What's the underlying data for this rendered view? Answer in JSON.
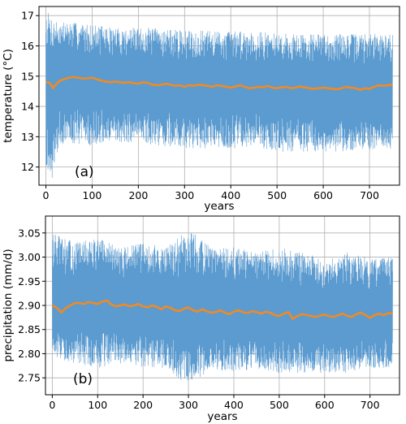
{
  "chart_data": [
    {
      "type": "line",
      "panel_label": "(a)",
      "xlabel": "years",
      "ylabel": "temperature (°C)",
      "xlim": [
        -15,
        765
      ],
      "ylim": [
        11.4,
        17.3
      ],
      "xticks": [
        0,
        100,
        200,
        300,
        400,
        500,
        600,
        700
      ],
      "yticks": [
        12,
        13,
        14,
        15,
        16,
        17
      ],
      "grid": true,
      "colors": {
        "raw": "#5b9bd0",
        "smooth": "#f08a24"
      },
      "series": [
        {
          "role": "annual",
          "envelope_x": [
            0,
            5,
            10,
            15,
            20,
            30,
            50,
            100,
            150,
            200,
            250,
            300,
            350,
            400,
            450,
            500,
            550,
            600,
            650,
            700,
            750
          ],
          "envelope_upper": [
            17.2,
            17.1,
            17.0,
            16.9,
            16.9,
            16.8,
            16.8,
            16.7,
            16.6,
            16.6,
            16.6,
            16.5,
            16.5,
            16.5,
            16.5,
            16.4,
            16.4,
            16.4,
            16.4,
            16.4,
            16.4
          ],
          "envelope_lower": [
            12.0,
            11.9,
            11.7,
            11.6,
            12.3,
            12.7,
            12.8,
            12.7,
            12.8,
            12.8,
            12.7,
            12.6,
            12.6,
            12.6,
            12.7,
            12.5,
            12.5,
            12.5,
            12.5,
            12.5,
            12.5
          ]
        },
        {
          "role": "smoothed",
          "x": [
            0,
            5,
            10,
            15,
            20,
            30,
            40,
            50,
            60,
            70,
            80,
            90,
            100,
            110,
            120,
            130,
            140,
            150,
            160,
            170,
            180,
            190,
            200,
            210,
            220,
            230,
            240,
            250,
            260,
            270,
            280,
            290,
            300,
            310,
            320,
            330,
            340,
            350,
            360,
            370,
            380,
            390,
            400,
            410,
            420,
            430,
            440,
            450,
            460,
            470,
            480,
            490,
            500,
            510,
            520,
            530,
            540,
            550,
            560,
            570,
            580,
            590,
            600,
            610,
            620,
            630,
            640,
            650,
            660,
            670,
            680,
            690,
            700,
            710,
            720,
            730,
            740,
            750
          ],
          "y": [
            14.8,
            14.8,
            14.75,
            14.6,
            14.7,
            14.85,
            14.9,
            14.95,
            14.97,
            14.95,
            14.92,
            14.93,
            14.95,
            14.9,
            14.85,
            14.82,
            14.8,
            14.82,
            14.8,
            14.78,
            14.8,
            14.77,
            14.75,
            14.8,
            14.78,
            14.72,
            14.7,
            14.72,
            14.75,
            14.72,
            14.68,
            14.7,
            14.65,
            14.7,
            14.68,
            14.72,
            14.7,
            14.68,
            14.65,
            14.7,
            14.68,
            14.65,
            14.62,
            14.66,
            14.7,
            14.65,
            14.6,
            14.62,
            14.65,
            14.63,
            14.68,
            14.62,
            14.6,
            14.63,
            14.65,
            14.6,
            14.62,
            14.66,
            14.63,
            14.6,
            14.58,
            14.6,
            14.62,
            14.6,
            14.58,
            14.57,
            14.6,
            14.65,
            14.62,
            14.6,
            14.55,
            14.6,
            14.58,
            14.65,
            14.7,
            14.68,
            14.7,
            14.72
          ]
        }
      ]
    },
    {
      "type": "line",
      "panel_label": "(b)",
      "xlabel": "years",
      "ylabel": "precipitation (mm/d)",
      "xlim": [
        -15,
        765
      ],
      "ylim": [
        2.715,
        3.085
      ],
      "xticks": [
        0,
        100,
        200,
        300,
        400,
        500,
        600,
        700
      ],
      "yticks": [
        2.75,
        2.8,
        2.85,
        2.9,
        2.95,
        3.0,
        3.05
      ],
      "ytick_labels": [
        "2.75",
        "2.80",
        "2.85",
        "2.90",
        "2.95",
        "3.00",
        "3.05"
      ],
      "grid": true,
      "colors": {
        "raw": "#5b9bd0",
        "smooth": "#f08a24"
      },
      "series": [
        {
          "role": "annual",
          "envelope_x": [
            0,
            50,
            100,
            150,
            200,
            250,
            300,
            350,
            400,
            450,
            500,
            550,
            600,
            650,
            700,
            750
          ],
          "envelope_upper": [
            3.05,
            3.03,
            3.04,
            3.02,
            3.03,
            3.02,
            3.06,
            3.02,
            3.02,
            3.01,
            3.02,
            3.01,
            3.0,
            3.01,
            3.0,
            3.0
          ],
          "envelope_lower": [
            2.79,
            2.78,
            2.77,
            2.78,
            2.77,
            2.77,
            2.73,
            2.77,
            2.76,
            2.77,
            2.76,
            2.76,
            2.76,
            2.76,
            2.77,
            2.77
          ]
        },
        {
          "role": "smoothed",
          "x": [
            0,
            10,
            20,
            30,
            40,
            50,
            60,
            70,
            80,
            90,
            100,
            110,
            120,
            130,
            140,
            150,
            160,
            170,
            180,
            190,
            200,
            210,
            220,
            230,
            240,
            250,
            260,
            270,
            280,
            290,
            300,
            310,
            320,
            330,
            340,
            350,
            360,
            370,
            380,
            390,
            400,
            410,
            420,
            430,
            440,
            450,
            460,
            470,
            480,
            490,
            500,
            510,
            520,
            530,
            540,
            550,
            560,
            570,
            580,
            590,
            600,
            610,
            620,
            630,
            640,
            650,
            660,
            670,
            680,
            690,
            700,
            710,
            720,
            730,
            740,
            750
          ],
          "y": [
            2.9,
            2.895,
            2.885,
            2.895,
            2.9,
            2.905,
            2.905,
            2.903,
            2.907,
            2.905,
            2.903,
            2.908,
            2.91,
            2.902,
            2.898,
            2.9,
            2.902,
            2.898,
            2.9,
            2.903,
            2.898,
            2.896,
            2.9,
            2.897,
            2.892,
            2.898,
            2.895,
            2.89,
            2.888,
            2.893,
            2.896,
            2.89,
            2.887,
            2.892,
            2.888,
            2.885,
            2.886,
            2.89,
            2.885,
            2.882,
            2.887,
            2.89,
            2.886,
            2.884,
            2.888,
            2.886,
            2.883,
            2.887,
            2.885,
            2.88,
            2.878,
            2.883,
            2.886,
            2.872,
            2.878,
            2.882,
            2.88,
            2.878,
            2.876,
            2.879,
            2.881,
            2.878,
            2.876,
            2.88,
            2.883,
            2.878,
            2.876,
            2.882,
            2.885,
            2.88,
            2.874,
            2.88,
            2.883,
            2.88,
            2.884,
            2.883
          ]
        }
      ]
    }
  ]
}
